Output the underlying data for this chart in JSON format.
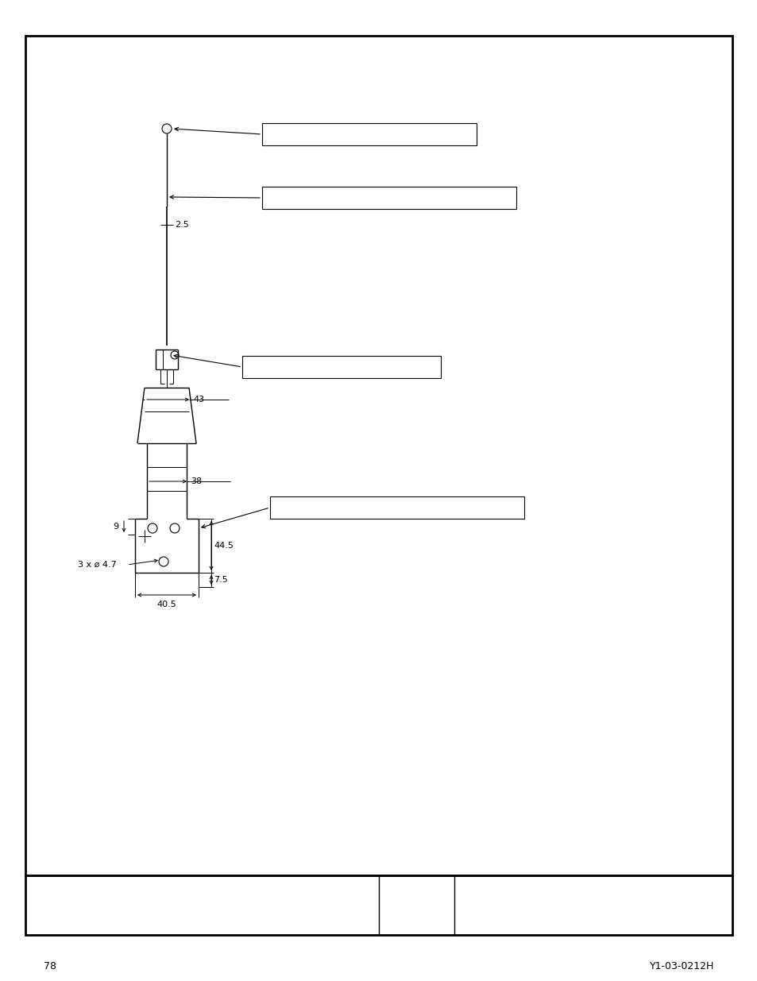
{
  "page_border_color": "#000000",
  "background_color": "#ffffff",
  "line_color": "#000000",
  "page_number": "78",
  "doc_number": "Y1-03-0212H",
  "dim_2_5": "2.5",
  "dim_43": "43",
  "dim_38": "38",
  "dim_9": "9",
  "dim_44_5": "44.5",
  "dim_7_5": "7.5",
  "dim_40_5": "40.5",
  "dim_holes": "3 x ø 4.7",
  "figsize": [
    9.54,
    12.35
  ],
  "dpi": 100
}
